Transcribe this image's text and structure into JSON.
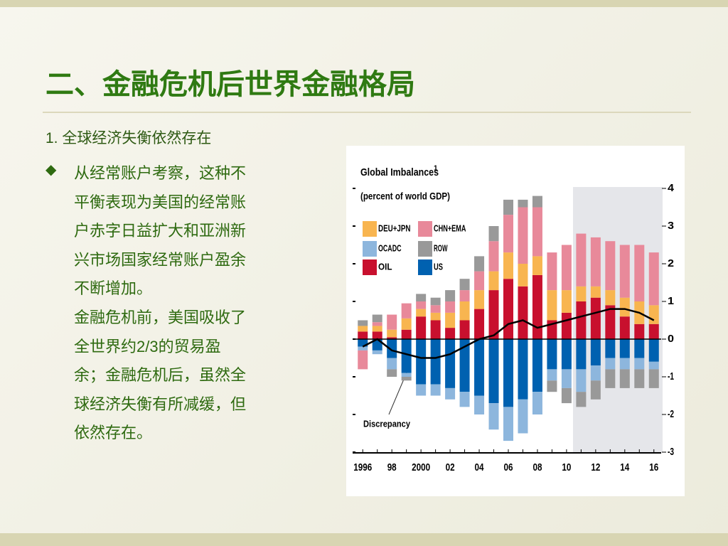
{
  "header": {
    "title": "二、金融危机后世界金融格局"
  },
  "section": {
    "heading": "1. 全球经济失衡依然存在",
    "bullet_lines": [
      "从经常账户考察，这种不",
      "平衡表现为美国的经常账",
      "户赤字日益扩大和亚洲新",
      "兴市场国家经常账户盈余",
      "不断增加。",
      "金融危机前，美国吸收了",
      "全世界约2/3的贸易盈",
      "余；金融危机后，虽然全",
      "球经济失衡有所减缓，但",
      "依然存在。"
    ]
  },
  "chart_data": {
    "type": "bar",
    "stacked": true,
    "title": "Global Imbalances",
    "title_footnote": "1",
    "subtitle": "(percent of world GDP)",
    "annotation": "Discrepancy",
    "categories": [
      "1996",
      null,
      "98",
      null,
      "2000",
      null,
      "02",
      null,
      "04",
      null,
      "06",
      null,
      "08",
      null,
      "10",
      null,
      "12",
      null,
      "14",
      null,
      "16"
    ],
    "series": [
      {
        "name": "OIL",
        "color": "#c8102e",
        "values": [
          0.2,
          0.2,
          0.05,
          0.25,
          0.6,
          0.5,
          0.3,
          0.5,
          0.8,
          1.3,
          1.6,
          1.4,
          1.7,
          0.5,
          0.7,
          1.0,
          1.1,
          0.9,
          0.6,
          0.4,
          0.4
        ]
      },
      {
        "name": "US",
        "color": "#0061b0",
        "values": [
          -0.2,
          -0.3,
          -0.5,
          -0.9,
          -1.2,
          -1.2,
          -1.3,
          -1.4,
          -1.5,
          -1.7,
          -1.8,
          -1.6,
          -1.4,
          -0.8,
          -0.8,
          -0.8,
          -0.7,
          -0.5,
          -0.5,
          -0.5,
          -0.6
        ]
      },
      {
        "name": "DEU+JPN",
        "color": "#f8b550",
        "values": [
          0.15,
          0.15,
          0.2,
          0.3,
          0.2,
          0.2,
          0.4,
          0.5,
          0.5,
          0.5,
          0.7,
          0.6,
          0.5,
          0.8,
          0.6,
          0.4,
          0.3,
          0.4,
          0.5,
          0.6,
          0.5
        ]
      },
      {
        "name": "OCADC",
        "color": "#8db6dd",
        "values": [
          -0.1,
          -0.1,
          -0.3,
          -0.1,
          -0.3,
          -0.3,
          -0.3,
          -0.4,
          -0.5,
          -0.7,
          -0.9,
          -0.9,
          -0.6,
          -0.3,
          -0.5,
          -0.6,
          -0.4,
          -0.3,
          -0.3,
          -0.3,
          -0.2
        ]
      },
      {
        "name": "CHN+EMA",
        "color": "#e8899a",
        "values": [
          -0.5,
          0.1,
          0.4,
          0.4,
          0.2,
          0.2,
          0.3,
          0.3,
          0.5,
          0.8,
          1.0,
          1.5,
          1.3,
          1.0,
          1.2,
          1.4,
          1.3,
          1.3,
          1.4,
          1.5,
          1.4
        ]
      },
      {
        "name": "ROW",
        "color": "#999999",
        "values": [
          0.15,
          0.2,
          -0.2,
          -0.1,
          0.2,
          0.2,
          0.3,
          0.3,
          0.4,
          0.4,
          0.4,
          0.2,
          0.3,
          -0.3,
          -0.4,
          -0.4,
          -0.5,
          -0.5,
          -0.5,
          -0.5,
          -0.5
        ]
      }
    ],
    "line": {
      "color": "#000000",
      "values": [
        -0.2,
        0.0,
        -0.3,
        -0.4,
        -0.5,
        -0.5,
        -0.4,
        -0.2,
        0.0,
        0.1,
        0.4,
        0.5,
        0.3,
        0.4,
        0.5,
        0.6,
        0.7,
        0.8,
        0.8,
        0.7,
        0.5
      ]
    },
    "ylim": [
      -3,
      4
    ],
    "yticks": [
      -3,
      -2,
      -1,
      0,
      1,
      2,
      3,
      4
    ]
  }
}
